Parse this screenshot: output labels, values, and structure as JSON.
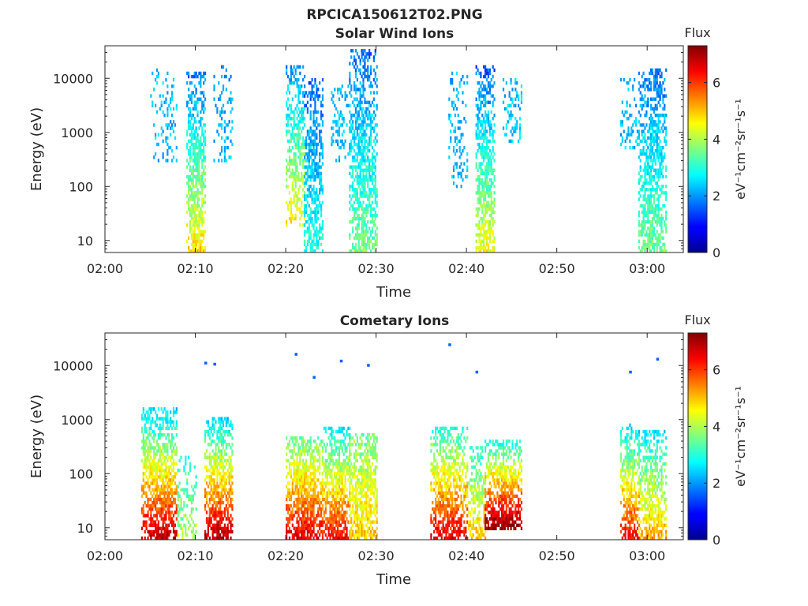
{
  "figure": {
    "title": "RPCICA150612T02.PNG"
  },
  "colorbar": {
    "title": "Flux",
    "label": "eV⁻¹cm⁻²sr⁻¹s⁻¹",
    "min": 0,
    "max": 7.3,
    "ticks": [
      "0",
      "2",
      "4",
      "6"
    ],
    "colormap": "jet"
  },
  "chart_data": [
    {
      "type": "heatmap",
      "title": "Solar Wind Ions",
      "xlabel": "Time",
      "ylabel": "Energy (eV)",
      "y_scale": "log",
      "ylim": [
        6,
        40000
      ],
      "xlim_min": [
        120,
        184
      ],
      "x_ticks": [
        "02:00",
        "02:10",
        "02:20",
        "02:30",
        "02:40",
        "02:50",
        "03:00"
      ],
      "y_ticks": [
        "10",
        "100",
        "1000",
        "10000"
      ],
      "bursts": [
        {
          "start": "02:05",
          "end": "02:08",
          "emin": 300,
          "emax": 15000,
          "flux_low": 2.2,
          "flux_high": 2.4,
          "density": 0.25
        },
        {
          "start": "02:09",
          "end": "02:11",
          "emin": 6,
          "emax": 12000,
          "flux_low": 4.8,
          "flux_high": 1.7,
          "density": 0.75
        },
        {
          "start": "02:12",
          "end": "02:14",
          "emin": 300,
          "emax": 17000,
          "flux_low": 2.3,
          "flux_high": 2.0,
          "density": 0.25
        },
        {
          "start": "02:20",
          "end": "02:22",
          "emin": 20,
          "emax": 17000,
          "flux_low": 4.6,
          "flux_high": 1.9,
          "density": 0.6
        },
        {
          "start": "02:22",
          "end": "02:24",
          "emin": 6,
          "emax": 9000,
          "flux_low": 3.0,
          "flux_high": 1.6,
          "density": 0.7
        },
        {
          "start": "02:25",
          "end": "02:27",
          "emin": 300,
          "emax": 7000,
          "flux_low": 2.2,
          "flux_high": 2.3,
          "density": 0.3
        },
        {
          "start": "02:27",
          "end": "02:30",
          "emin": 6,
          "emax": 33000,
          "flux_low": 3.6,
          "flux_high": 1.7,
          "density": 0.7
        },
        {
          "start": "02:38",
          "end": "02:40",
          "emin": 100,
          "emax": 12000,
          "flux_low": 2.3,
          "flux_high": 2.2,
          "density": 0.25
        },
        {
          "start": "02:41",
          "end": "02:43",
          "emin": 6,
          "emax": 16000,
          "flux_low": 4.5,
          "flux_high": 1.5,
          "density": 0.75
        },
        {
          "start": "02:44",
          "end": "02:46",
          "emin": 700,
          "emax": 9000,
          "flux_low": 2.4,
          "flux_high": 2.3,
          "density": 0.35
        },
        {
          "start": "02:57",
          "end": "02:59",
          "emin": 500,
          "emax": 10000,
          "flux_low": 2.3,
          "flux_high": 2.2,
          "density": 0.25
        },
        {
          "start": "02:59",
          "end": "03:02",
          "emin": 6,
          "emax": 14000,
          "flux_low": 3.6,
          "flux_high": 1.7,
          "density": 0.7
        }
      ]
    },
    {
      "type": "heatmap",
      "title": "Cometary Ions",
      "xlabel": "Time",
      "ylabel": "Energy (eV)",
      "y_scale": "log",
      "ylim": [
        6,
        40000
      ],
      "xlim_min": [
        120,
        184
      ],
      "x_ticks": [
        "02:00",
        "02:10",
        "02:20",
        "02:30",
        "02:40",
        "02:50",
        "03:00"
      ],
      "y_ticks": [
        "10",
        "100",
        "1000",
        "10000"
      ],
      "bursts": [
        {
          "start": "02:04",
          "end": "02:08",
          "emin": 6,
          "emax": 1500,
          "flux_low": 6.9,
          "flux_high": 2.4,
          "density": 0.8
        },
        {
          "start": "02:08",
          "end": "02:10",
          "emin": 6,
          "emax": 200,
          "flux_low": 4.0,
          "flux_high": 3.0,
          "density": 0.4
        },
        {
          "start": "02:11",
          "end": "02:14",
          "emin": 6,
          "emax": 1000,
          "flux_low": 7.0,
          "flux_high": 2.4,
          "density": 0.8
        },
        {
          "start": "02:20",
          "end": "02:24",
          "emin": 6,
          "emax": 450,
          "flux_low": 6.6,
          "flux_high": 3.4,
          "density": 0.85
        },
        {
          "start": "02:24",
          "end": "02:27",
          "emin": 6,
          "emax": 700,
          "flux_low": 6.4,
          "flux_high": 2.6,
          "density": 0.8
        },
        {
          "start": "02:27",
          "end": "02:30",
          "emin": 6,
          "emax": 500,
          "flux_low": 5.0,
          "flux_high": 3.6,
          "density": 0.8
        },
        {
          "start": "02:36",
          "end": "02:40",
          "emin": 6,
          "emax": 650,
          "flux_low": 6.6,
          "flux_high": 3.0,
          "density": 0.75
        },
        {
          "start": "02:40",
          "end": "02:42",
          "emin": 6,
          "emax": 300,
          "flux_low": 5.0,
          "flux_high": 3.0,
          "density": 0.6
        },
        {
          "start": "02:42",
          "end": "02:46",
          "emin": 10,
          "emax": 400,
          "flux_low": 7.2,
          "flux_high": 2.8,
          "density": 0.8
        },
        {
          "start": "02:57",
          "end": "02:59",
          "emin": 6,
          "emax": 800,
          "flux_low": 6.4,
          "flux_high": 2.4,
          "density": 0.7
        },
        {
          "start": "02:59",
          "end": "03:02",
          "emin": 6,
          "emax": 600,
          "flux_low": 5.2,
          "flux_high": 2.6,
          "density": 0.7
        }
      ],
      "isolated_points": [
        {
          "time": "02:11",
          "energy": 11000
        },
        {
          "time": "02:12",
          "energy": 10500
        },
        {
          "time": "02:21",
          "energy": 16000
        },
        {
          "time": "02:23",
          "energy": 6000
        },
        {
          "time": "02:26",
          "energy": 12000
        },
        {
          "time": "02:29",
          "energy": 10000
        },
        {
          "time": "02:38",
          "energy": 24000
        },
        {
          "time": "02:41",
          "energy": 7500
        },
        {
          "time": "02:58",
          "energy": 7500
        },
        {
          "time": "03:01",
          "energy": 13000
        }
      ]
    }
  ]
}
